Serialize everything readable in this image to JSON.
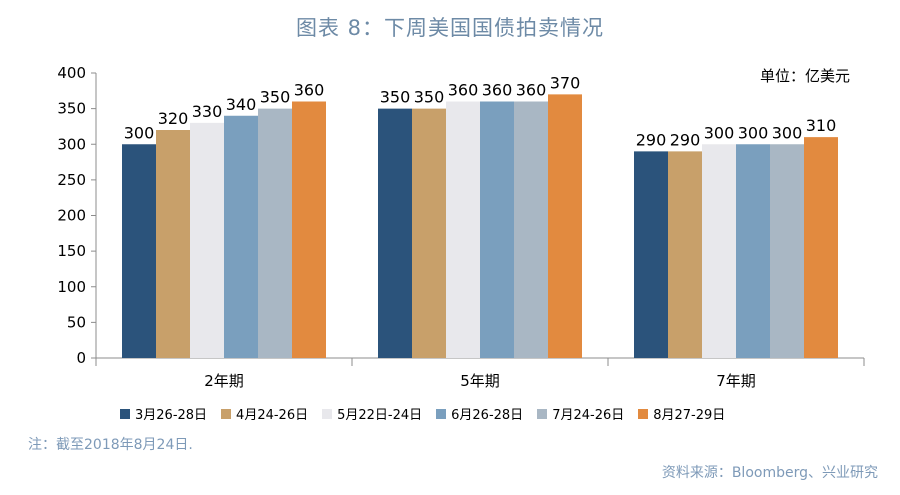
{
  "header": {
    "title": "图表 8：下周美国国债拍卖情况"
  },
  "footer": {
    "note": "注：截至2018年8月24日.",
    "source": "资料来源：Bloomberg、兴业研究"
  },
  "chart_data": {
    "type": "bar",
    "title": "图表 8：下周美国国债拍卖情况",
    "unit_label": "单位：亿美元",
    "categories": [
      "2年期",
      "5年期",
      "7年期"
    ],
    "ylim": [
      0,
      400
    ],
    "yticks": [
      0,
      50,
      100,
      150,
      200,
      250,
      300,
      350,
      400
    ],
    "grid": false,
    "legend_position": "bottom",
    "series": [
      {
        "name": "3月26-28日",
        "color": "#2b537b",
        "values": [
          300,
          350,
          290
        ]
      },
      {
        "name": "4月24-26日",
        "color": "#c8a06a",
        "values": [
          320,
          350,
          290
        ]
      },
      {
        "name": "5月22日-24日",
        "color": "#e8e8ec",
        "values": [
          330,
          360,
          300
        ]
      },
      {
        "name": "6月26-28日",
        "color": "#7a9fbe",
        "values": [
          340,
          360,
          300
        ]
      },
      {
        "name": "7月24-26日",
        "color": "#a9b7c4",
        "values": [
          350,
          360,
          300
        ]
      },
      {
        "name": "8月27-29日",
        "color": "#e28a3f",
        "values": [
          360,
          370,
          310
        ]
      }
    ]
  }
}
